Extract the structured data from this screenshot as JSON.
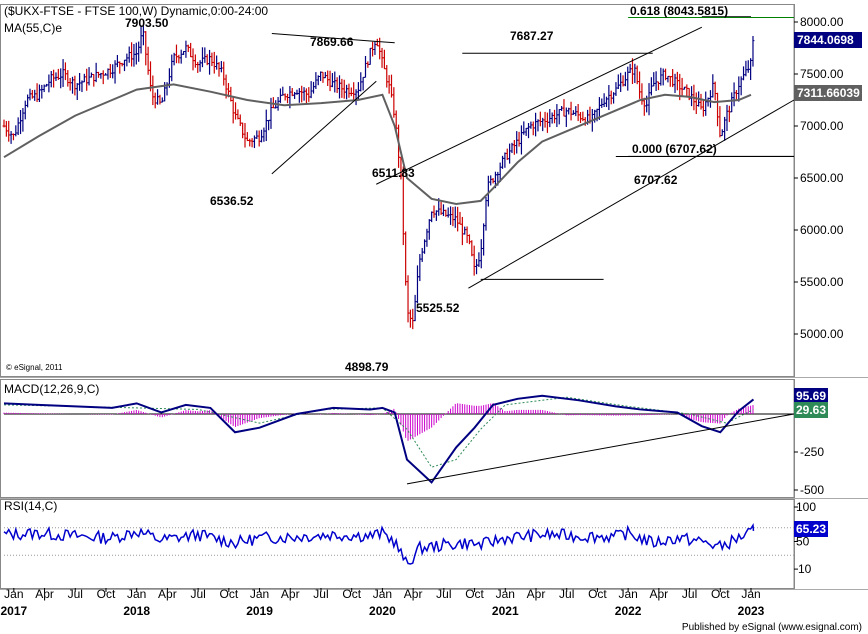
{
  "chart_data": [
    {
      "type": "line",
      "panel": "price",
      "title": "($UKX-FTSE - FTSE 100,W) Dynamic,0:00-24:00",
      "indicator_label": "MA(55,C)e",
      "copyright": "© eSignal, 2011",
      "ylim": [
        4800,
        8100
      ],
      "yticks": [
        5000,
        5500,
        6000,
        6500,
        7000,
        7500,
        8000
      ],
      "ytick_labels": [
        "5000.00",
        "5500.00",
        "6000.00",
        "6500.00",
        "7000.00",
        "7500.00",
        "8000.00"
      ],
      "last_price_label": "7844.0698",
      "ma_label": "7311.66039",
      "annotations": [
        {
          "text": "7903.50",
          "x": 2018.05,
          "y": 7903.5
        },
        {
          "text": "7869.66",
          "x": 2019.75,
          "y": 7869.66
        },
        {
          "text": "6536.52",
          "x": 2018.9,
          "y": 6536.52
        },
        {
          "text": "7687.27",
          "x": 2021.5,
          "y": 7687.27
        },
        {
          "text": "6511.83",
          "x": 2020.6,
          "y": 6511.83
        },
        {
          "text": "5525.52",
          "x": 2020.8,
          "y": 5525.52
        },
        {
          "text": "4898.79",
          "x": 2020.2,
          "y": 4898.79
        },
        {
          "text": "6707.62",
          "x": 2022.75,
          "y": 6707.62
        },
        {
          "text": "0.000 (6707.62)",
          "x": 2022.75,
          "y": 6707.62
        },
        {
          "text": "0.618 (8043.5815)",
          "x": 2022.4,
          "y": 8043.58
        }
      ],
      "series": [
        {
          "name": "FTSE 100",
          "x": [
            2016.92,
            2017.0,
            2017.1,
            2017.2,
            2017.3,
            2017.4,
            2017.5,
            2017.6,
            2017.7,
            2017.8,
            2017.9,
            2018.0,
            2018.05,
            2018.12,
            2018.2,
            2018.3,
            2018.4,
            2018.5,
            2018.6,
            2018.7,
            2018.8,
            2018.9,
            2019.0,
            2019.1,
            2019.2,
            2019.3,
            2019.4,
            2019.5,
            2019.6,
            2019.7,
            2019.8,
            2019.9,
            2019.95,
            2020.0,
            2020.05,
            2020.1,
            2020.15,
            2020.2,
            2020.25,
            2020.3,
            2020.4,
            2020.5,
            2020.6,
            2020.7,
            2020.75,
            2020.8,
            2020.85,
            2020.9,
            2021.0,
            2021.1,
            2021.2,
            2021.3,
            2021.4,
            2021.5,
            2021.6,
            2021.7,
            2021.8,
            2021.9,
            2022.0,
            2022.05,
            2022.1,
            2022.15,
            2022.2,
            2022.3,
            2022.4,
            2022.5,
            2022.6,
            2022.7,
            2022.75,
            2022.8,
            2022.9,
            2023.0,
            2023.02
          ],
          "y": [
            7000,
            6900,
            7250,
            7300,
            7450,
            7500,
            7400,
            7450,
            7500,
            7550,
            7650,
            7700,
            7900,
            7300,
            7200,
            7650,
            7750,
            7600,
            7650,
            7500,
            7100,
            6850,
            6900,
            7150,
            7300,
            7350,
            7300,
            7500,
            7400,
            7350,
            7350,
            7700,
            7850,
            7600,
            7400,
            7100,
            6500,
            5200,
            5100,
            5700,
            6200,
            6150,
            6100,
            5900,
            5600,
            5800,
            6400,
            6500,
            6700,
            6850,
            7000,
            7050,
            7100,
            7150,
            7100,
            7050,
            7250,
            7350,
            7500,
            7550,
            7300,
            7200,
            7400,
            7500,
            7400,
            7300,
            7150,
            7400,
            6900,
            7100,
            7400,
            7600,
            7844
          ]
        },
        {
          "name": "MA(55,C)e",
          "x": [
            2016.92,
            2017.2,
            2017.5,
            2017.8,
            2018.0,
            2018.3,
            2018.6,
            2018.9,
            2019.2,
            2019.5,
            2019.8,
            2020.0,
            2020.1,
            2020.2,
            2020.4,
            2020.6,
            2020.8,
            2020.9,
            2021.1,
            2021.3,
            2021.5,
            2021.7,
            2021.9,
            2022.1,
            2022.3,
            2022.5,
            2022.7,
            2022.9,
            2023.0
          ],
          "y": [
            6700,
            6900,
            7100,
            7250,
            7350,
            7400,
            7330,
            7250,
            7200,
            7220,
            7250,
            7300,
            7000,
            6500,
            6300,
            6250,
            6280,
            6400,
            6650,
            6850,
            6950,
            7050,
            7150,
            7250,
            7300,
            7280,
            7230,
            7250,
            7300
          ]
        }
      ]
    },
    {
      "type": "line",
      "panel": "macd",
      "title": "MACD(12,26,9,C)",
      "ylim": [
        -520,
        150
      ],
      "yticks": [
        0,
        -250,
        -500
      ],
      "ytick_labels": [
        "0",
        "-250",
        "-500"
      ],
      "value_labels": [
        "95.69",
        "29.63"
      ],
      "series": [
        {
          "name": "MACD",
          "x": [
            2016.92,
            2017.2,
            2017.5,
            2017.8,
            2018.0,
            2018.2,
            2018.4,
            2018.6,
            2018.8,
            2019.0,
            2019.3,
            2019.6,
            2019.9,
            2020.0,
            2020.1,
            2020.2,
            2020.4,
            2020.6,
            2020.75,
            2020.9,
            2021.1,
            2021.3,
            2021.6,
            2021.9,
            2022.1,
            2022.4,
            2022.6,
            2022.75,
            2022.9,
            2023.02
          ],
          "y": [
            70,
            60,
            50,
            40,
            70,
            10,
            60,
            40,
            -120,
            -90,
            0,
            40,
            30,
            40,
            10,
            -300,
            -450,
            -220,
            -90,
            60,
            100,
            120,
            90,
            50,
            30,
            10,
            -80,
            -120,
            20,
            95.69
          ]
        },
        {
          "name": "Signal",
          "x": [
            2016.92,
            2017.5,
            2018.0,
            2018.5,
            2019.0,
            2019.5,
            2020.0,
            2020.2,
            2020.4,
            2020.6,
            2020.8,
            2021.0,
            2021.5,
            2022.0,
            2022.5,
            2022.8,
            2023.02
          ],
          "y": [
            60,
            50,
            40,
            30,
            -60,
            30,
            40,
            -100,
            -350,
            -300,
            -100,
            60,
            110,
            50,
            0,
            -60,
            29.63
          ]
        }
      ]
    },
    {
      "type": "line",
      "panel": "rsi",
      "title": "RSI(14,C)",
      "ylim": [
        0,
        100
      ],
      "yticks": [
        100,
        50,
        10
      ],
      "ytick_labels": [
        "100",
        "50",
        "10"
      ],
      "value_labels": [
        "65.23"
      ],
      "x_axis_labels": [
        {
          "text": "Jan",
          "x": 2017.0
        },
        {
          "text": "Apr",
          "x": 2017.25
        },
        {
          "text": "Jul",
          "x": 2017.5
        },
        {
          "text": "Oct",
          "x": 2017.75
        },
        {
          "text": "Jan",
          "x": 2018.0
        },
        {
          "text": "Apr",
          "x": 2018.25
        },
        {
          "text": "Jul",
          "x": 2018.5
        },
        {
          "text": "Oct",
          "x": 2018.75
        },
        {
          "text": "Jan",
          "x": 2019.0
        },
        {
          "text": "Apr",
          "x": 2019.25
        },
        {
          "text": "Jul",
          "x": 2019.5
        },
        {
          "text": "Oct",
          "x": 2019.75
        },
        {
          "text": "Jan",
          "x": 2020.0
        },
        {
          "text": "Apr",
          "x": 2020.25
        },
        {
          "text": "Jul",
          "x": 2020.5
        },
        {
          "text": "Oct",
          "x": 2020.75
        },
        {
          "text": "Jan",
          "x": 2021.0
        },
        {
          "text": "Apr",
          "x": 2021.25
        },
        {
          "text": "Jul",
          "x": 2021.5
        },
        {
          "text": "Oct",
          "x": 2021.75
        },
        {
          "text": "Jan",
          "x": 2022.0
        },
        {
          "text": "Apr",
          "x": 2022.25
        },
        {
          "text": "Jul",
          "x": 2022.5
        },
        {
          "text": "Oct",
          "x": 2022.75
        },
        {
          "text": "Jan",
          "x": 2023.0
        }
      ],
      "x_year_labels": [
        {
          "text": "2017",
          "x": 2017.0
        },
        {
          "text": "2018",
          "x": 2018.0
        },
        {
          "text": "2019",
          "x": 2019.0
        },
        {
          "text": "2020",
          "x": 2020.0
        },
        {
          "text": "2021",
          "x": 2021.0
        },
        {
          "text": "2022",
          "x": 2022.0
        },
        {
          "text": "2023",
          "x": 2023.0
        }
      ],
      "series": [
        {
          "name": "RSI",
          "x": [
            2016.92,
            2017.2,
            2017.5,
            2017.8,
            2018.0,
            2018.2,
            2018.5,
            2018.8,
            2019.0,
            2019.3,
            2019.6,
            2019.9,
            2020.0,
            2020.1,
            2020.2,
            2020.3,
            2020.5,
            2020.7,
            2020.8,
            2021.0,
            2021.3,
            2021.6,
            2021.9,
            2022.0,
            2022.2,
            2022.4,
            2022.6,
            2022.75,
            2022.9,
            2023.02
          ],
          "y": [
            60,
            62,
            58,
            55,
            65,
            52,
            60,
            48,
            55,
            57,
            60,
            58,
            62,
            50,
            15,
            40,
            45,
            48,
            45,
            55,
            60,
            58,
            57,
            62,
            48,
            55,
            50,
            42,
            55,
            65.23
          ]
        }
      ]
    }
  ],
  "footer": "Published by eSignal (www.esignal.com)",
  "colors": {
    "price_up": "#000080",
    "price_down": "#cc0000",
    "ma": "#606060",
    "macd": "#000080",
    "macd_signal": "#2e8b57",
    "histogram": "#cc00cc",
    "rsi": "#0000cc",
    "fib_line": "#008000",
    "tag_price": "#000080",
    "tag_ma": "#606060",
    "tag_green": "#2e8b57",
    "tag_rsi": "#0000cc"
  }
}
